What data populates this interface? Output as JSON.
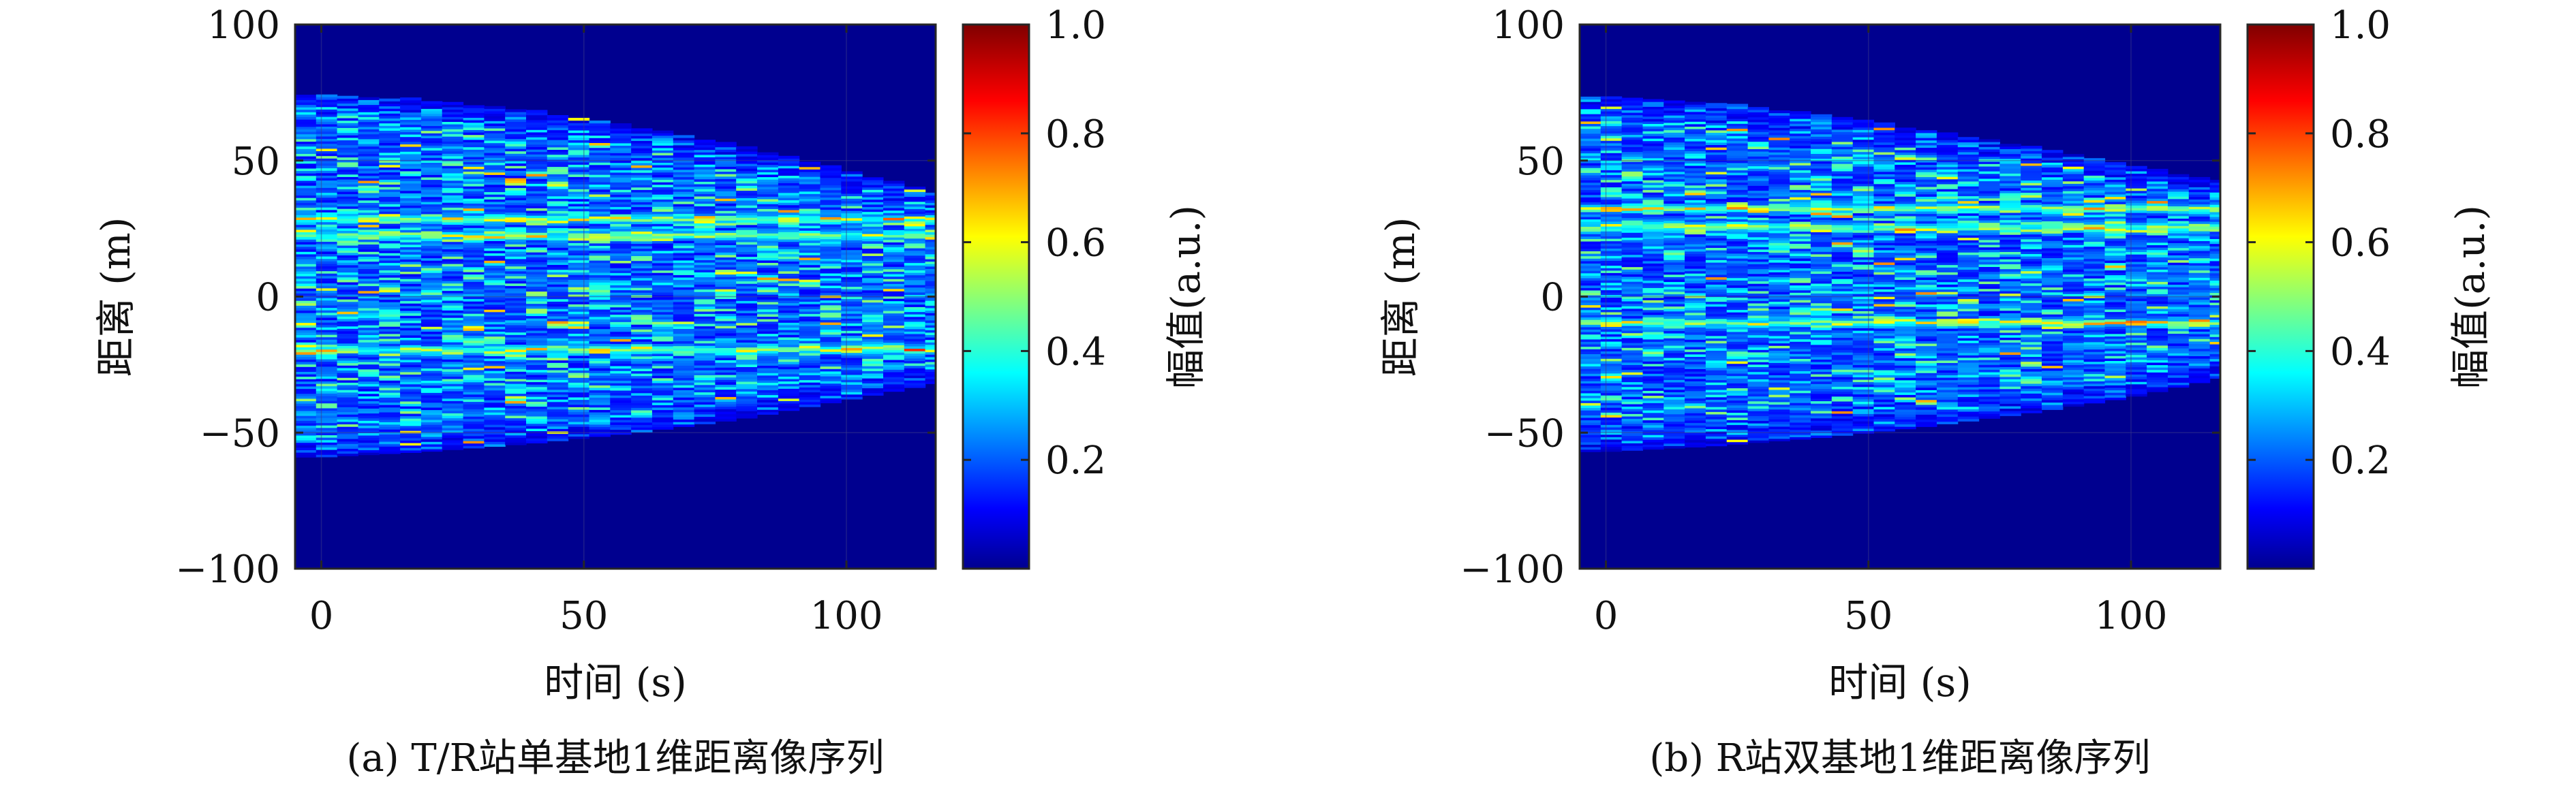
{
  "chart_data": [
    {
      "type": "heatmap",
      "caption": "(a) T/R站单基地1维距离像序列",
      "xlabel": "时间 (s)",
      "ylabel": "距离 (m)",
      "xlim": [
        -5,
        117
      ],
      "ylim": [
        -100,
        100
      ],
      "xticks": [
        0,
        50,
        100
      ],
      "xtick_labels": [
        "0",
        "50",
        "100"
      ],
      "yticks": [
        100,
        50,
        0,
        -50,
        -100
      ],
      "ytick_labels": [
        "100",
        "50",
        "0",
        "−50",
        "−100"
      ],
      "colorbar": {
        "label": "幅值(a.u.)",
        "range": [
          0,
          1
        ],
        "ticks": [
          1.0,
          0.8,
          0.6,
          0.4,
          0.2
        ],
        "tick_labels": [
          "1.0",
          "0.8",
          "0.6",
          "0.4",
          "0.2"
        ],
        "colormap": "jet"
      },
      "background_value": 0.05,
      "envelope": {
        "time": [
          -3,
          0,
          20,
          40,
          60,
          80,
          100,
          117
        ],
        "upper_range": [
          74,
          74,
          72,
          68,
          62,
          55,
          46,
          38
        ],
        "lower_range": [
          -59,
          -59,
          -57,
          -54,
          -50,
          -45,
          -38,
          -32
        ]
      },
      "bright_bands_range": [
        28,
        22,
        -20
      ]
    },
    {
      "type": "heatmap",
      "caption": "(b) R站双基地1维距离像序列",
      "xlabel": "时间 (s)",
      "ylabel": "距离 (m)",
      "xlim": [
        -5,
        117
      ],
      "ylim": [
        -100,
        100
      ],
      "xticks": [
        0,
        50,
        100
      ],
      "xtick_labels": [
        "0",
        "50",
        "100"
      ],
      "yticks": [
        100,
        50,
        0,
        -50,
        -100
      ],
      "ytick_labels": [
        "100",
        "50",
        "0",
        "−50",
        "−100"
      ],
      "colorbar": {
        "label": "幅值(a.u.)",
        "range": [
          0,
          1
        ],
        "ticks": [
          1.0,
          0.8,
          0.6,
          0.4,
          0.2
        ],
        "tick_labels": [
          "1.0",
          "0.8",
          "0.6",
          "0.4",
          "0.2"
        ],
        "colormap": "jet"
      },
      "background_value": 0.05,
      "envelope": {
        "time": [
          -3,
          0,
          20,
          40,
          60,
          80,
          100,
          117
        ],
        "upper_range": [
          73,
          73,
          71,
          67,
          61,
          55,
          48,
          42
        ],
        "lower_range": [
          -57,
          -57,
          -55,
          -52,
          -48,
          -43,
          -37,
          -30
        ]
      },
      "bright_bands_range": [
        32,
        25,
        -10
      ]
    }
  ]
}
